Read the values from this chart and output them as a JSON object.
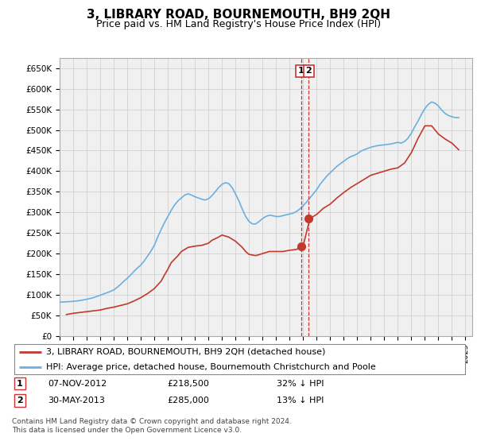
{
  "title": "3, LIBRARY ROAD, BOURNEMOUTH, BH9 2QH",
  "subtitle": "Price paid vs. HM Land Registry's House Price Index (HPI)",
  "ylim": [
    0,
    675000
  ],
  "xlim_start": 1995.0,
  "xlim_end": 2025.5,
  "hpi_color": "#6ab0e0",
  "price_color": "#c0392b",
  "marker_color": "#c0392b",
  "dashed_line_color": "#cc3333",
  "grid_color": "#cccccc",
  "bg_color": "#f0f0f0",
  "legend_label_red": "3, LIBRARY ROAD, BOURNEMOUTH, BH9 2QH (detached house)",
  "legend_label_blue": "HPI: Average price, detached house, Bournemouth Christchurch and Poole",
  "transaction1_date": "07-NOV-2012",
  "transaction1_price": "£218,500",
  "transaction1_hpi": "32% ↓ HPI",
  "transaction1_x": 2012.85,
  "transaction1_y": 218500,
  "transaction2_date": "30-MAY-2013",
  "transaction2_price": "£285,000",
  "transaction2_hpi": "13% ↓ HPI",
  "transaction2_x": 2013.41,
  "transaction2_y": 285000,
  "footer": "Contains HM Land Registry data © Crown copyright and database right 2024.\nThis data is licensed under the Open Government Licence v3.0.",
  "hpi_data_x": [
    1995.0,
    1995.25,
    1995.5,
    1995.75,
    1996.0,
    1996.25,
    1996.5,
    1996.75,
    1997.0,
    1997.25,
    1997.5,
    1997.75,
    1998.0,
    1998.25,
    1998.5,
    1998.75,
    1999.0,
    1999.25,
    1999.5,
    1999.75,
    2000.0,
    2000.25,
    2000.5,
    2000.75,
    2001.0,
    2001.25,
    2001.5,
    2001.75,
    2002.0,
    2002.25,
    2002.5,
    2002.75,
    2003.0,
    2003.25,
    2003.5,
    2003.75,
    2004.0,
    2004.25,
    2004.5,
    2004.75,
    2005.0,
    2005.25,
    2005.5,
    2005.75,
    2006.0,
    2006.25,
    2006.5,
    2006.75,
    2007.0,
    2007.25,
    2007.5,
    2007.75,
    2008.0,
    2008.25,
    2008.5,
    2008.75,
    2009.0,
    2009.25,
    2009.5,
    2009.75,
    2010.0,
    2010.25,
    2010.5,
    2010.75,
    2011.0,
    2011.25,
    2011.5,
    2011.75,
    2012.0,
    2012.25,
    2012.5,
    2012.75,
    2013.0,
    2013.25,
    2013.5,
    2013.75,
    2014.0,
    2014.25,
    2014.5,
    2014.75,
    2015.0,
    2015.25,
    2015.5,
    2015.75,
    2016.0,
    2016.25,
    2016.5,
    2016.75,
    2017.0,
    2017.25,
    2017.5,
    2017.75,
    2018.0,
    2018.25,
    2018.5,
    2018.75,
    2019.0,
    2019.25,
    2019.5,
    2019.75,
    2020.0,
    2020.25,
    2020.5,
    2020.75,
    2021.0,
    2021.25,
    2021.5,
    2021.75,
    2022.0,
    2022.25,
    2022.5,
    2022.75,
    2023.0,
    2023.25,
    2023.5,
    2023.75,
    2024.0,
    2024.25,
    2024.5
  ],
  "hpi_data_y": [
    82000,
    82500,
    83000,
    83500,
    84000,
    85000,
    86000,
    87500,
    89000,
    91000,
    93000,
    96000,
    99000,
    102000,
    105000,
    108000,
    112000,
    118000,
    125000,
    133000,
    140000,
    148000,
    157000,
    165000,
    172000,
    182000,
    194000,
    206000,
    220000,
    240000,
    258000,
    275000,
    290000,
    305000,
    318000,
    328000,
    335000,
    342000,
    345000,
    342000,
    338000,
    335000,
    332000,
    330000,
    333000,
    340000,
    350000,
    360000,
    368000,
    372000,
    370000,
    360000,
    345000,
    328000,
    308000,
    290000,
    278000,
    272000,
    272000,
    278000,
    285000,
    290000,
    293000,
    292000,
    290000,
    290000,
    292000,
    294000,
    296000,
    298000,
    302000,
    308000,
    316000,
    325000,
    335000,
    345000,
    355000,
    368000,
    378000,
    388000,
    396000,
    404000,
    412000,
    418000,
    424000,
    430000,
    435000,
    438000,
    442000,
    448000,
    452000,
    455000,
    458000,
    460000,
    462000,
    463000,
    464000,
    465000,
    466000,
    468000,
    470000,
    468000,
    472000,
    480000,
    492000,
    508000,
    522000,
    538000,
    552000,
    562000,
    568000,
    565000,
    558000,
    548000,
    540000,
    535000,
    532000,
    530000,
    530000
  ],
  "price_data_x": [
    1995.5,
    1996.0,
    1996.5,
    1997.0,
    1997.5,
    1997.75,
    1998.0,
    1998.25,
    1998.5,
    1999.0,
    1999.5,
    2000.0,
    2000.5,
    2001.0,
    2001.5,
    2002.0,
    2002.5,
    2002.75,
    2003.0,
    2003.25,
    2003.75,
    2004.0,
    2004.5,
    2005.0,
    2005.5,
    2006.0,
    2006.25,
    2006.75,
    2007.0,
    2007.5,
    2008.0,
    2008.5,
    2008.75,
    2009.0,
    2009.5,
    2010.0,
    2010.5,
    2011.0,
    2011.5,
    2012.0,
    2012.5,
    2013.0,
    2013.5,
    2014.0,
    2014.5,
    2015.0,
    2015.5,
    2016.0,
    2016.5,
    2017.0,
    2017.5,
    2018.0,
    2018.5,
    2019.0,
    2019.5,
    2020.0,
    2020.5,
    2021.0,
    2021.5,
    2022.0,
    2022.5,
    2022.75,
    2023.0,
    2023.5,
    2024.0,
    2024.25,
    2024.5
  ],
  "price_data_y": [
    52000,
    55000,
    57000,
    59000,
    61000,
    62000,
    63000,
    65000,
    67000,
    70000,
    74000,
    78000,
    85000,
    93000,
    103000,
    115000,
    133000,
    148000,
    162000,
    178000,
    195000,
    205000,
    215000,
    218000,
    220000,
    225000,
    232000,
    240000,
    245000,
    240000,
    230000,
    215000,
    205000,
    198000,
    195000,
    200000,
    205000,
    205000,
    205000,
    208000,
    210000,
    218500,
    285000,
    295000,
    310000,
    320000,
    335000,
    348000,
    360000,
    370000,
    380000,
    390000,
    395000,
    400000,
    405000,
    408000,
    420000,
    445000,
    480000,
    510000,
    510000,
    500000,
    490000,
    478000,
    468000,
    460000,
    452000
  ]
}
